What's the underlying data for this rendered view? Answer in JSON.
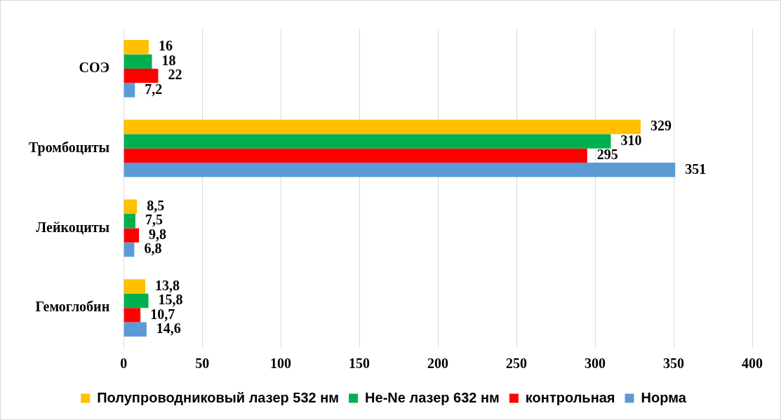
{
  "chart_data": {
    "type": "bar",
    "orientation": "horizontal",
    "categories": [
      "СОЭ",
      "Тромбоциты",
      "Лейкоциты",
      "Гемоглобин"
    ],
    "series": [
      {
        "name": "Полупроводниковый лазер 532 нм",
        "color": "#ffc000",
        "values": [
          16,
          329,
          8.5,
          13.8
        ],
        "value_labels": [
          "16",
          "329",
          "8,5",
          "13,8"
        ]
      },
      {
        "name": "He-Ne лазер 632 нм",
        "color": "#00b050",
        "values": [
          18,
          310,
          7.5,
          15.8
        ],
        "value_labels": [
          "18",
          "310",
          "7,5",
          "15,8"
        ]
      },
      {
        "name": "контрольная",
        "color": "#ff0000",
        "values": [
          22,
          295,
          9.8,
          10.7
        ],
        "value_labels": [
          "22",
          "295",
          "9,8",
          "10,7"
        ]
      },
      {
        "name": "Норма",
        "color": "#5b9bd5",
        "values": [
          7.2,
          351,
          6.8,
          14.6
        ],
        "value_labels": [
          "7,2",
          "351",
          "6,8",
          "14,6"
        ]
      }
    ],
    "xlim": [
      0,
      400
    ],
    "xticks": [
      0,
      50,
      100,
      150,
      200,
      250,
      300,
      350,
      400
    ],
    "grid": "x",
    "legend": "bottom"
  }
}
